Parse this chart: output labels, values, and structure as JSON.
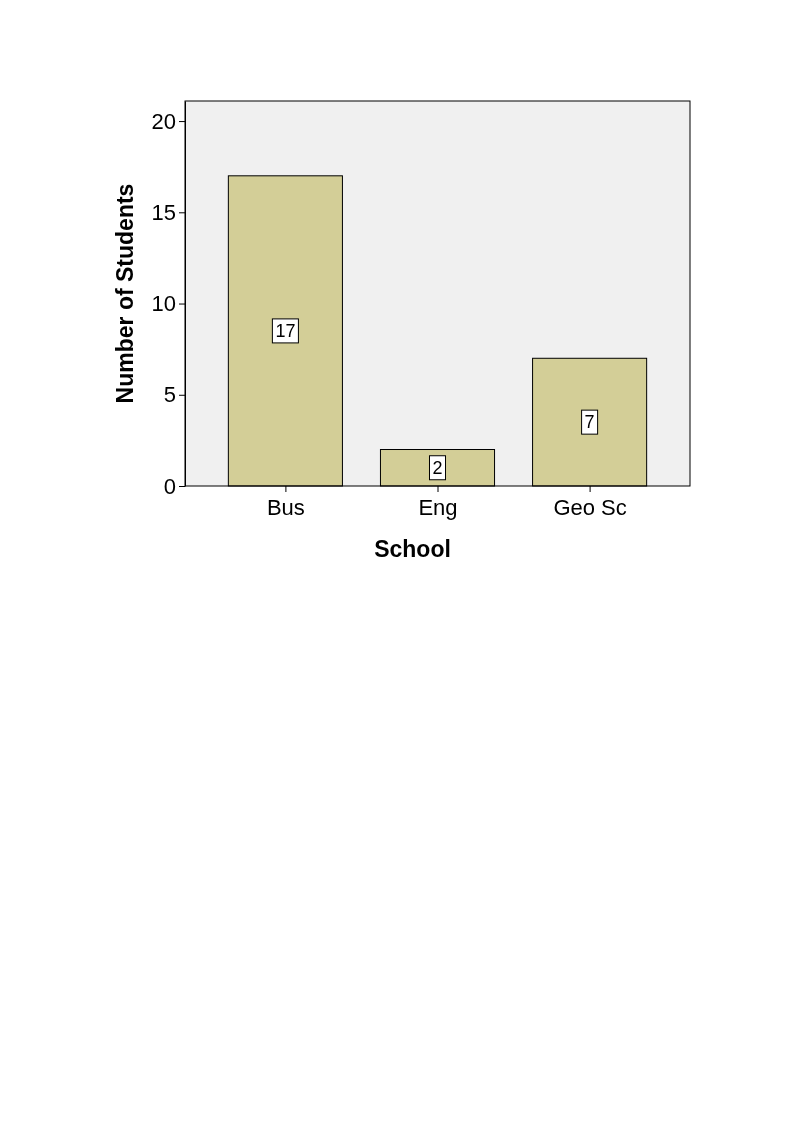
{
  "chart_data": {
    "type": "bar",
    "xlabel": "School",
    "ylabel": "Number of Students",
    "categories": [
      "Bus",
      "Eng",
      "Geo Sc"
    ],
    "values": [
      17,
      2,
      7
    ],
    "color": "#d3ce97",
    "ylim": [
      0,
      21.1
    ],
    "yticks": [
      0,
      5,
      10,
      15,
      20
    ],
    "grid": false,
    "data_labels": true
  }
}
